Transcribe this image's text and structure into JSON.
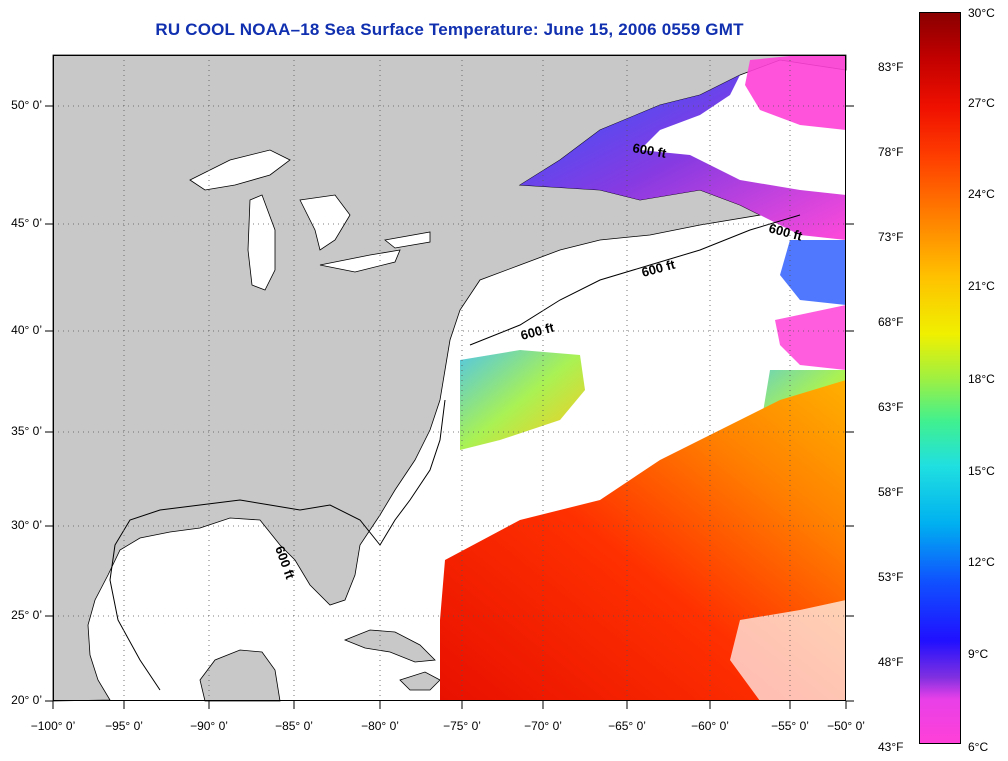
{
  "title": "RU COOL  NOAA–18  Sea Surface Temperature:  June 15, 2006 0559 GMT",
  "lat_labels": [
    "50° 0’",
    "45° 0’",
    "40° 0’",
    "35° 0’",
    "30° 0’",
    "25° 0’",
    "20° 0’"
  ],
  "lon_labels": [
    "−100° 0’",
    "−95° 0’",
    "−90° 0’",
    "−85° 0’",
    "−80° 0’",
    "−75° 0’",
    "−70° 0’",
    "−65° 0’",
    "−60° 0’",
    "−55° 0’",
    "−50° 0’"
  ],
  "colorbar_f": [
    "83°F",
    "78°F",
    "73°F",
    "68°F",
    "63°F",
    "58°F",
    "53°F",
    "48°F",
    "43°F"
  ],
  "colorbar_c": [
    "30°C",
    "27°C",
    "24°C",
    "21°C",
    "18°C",
    "15°C",
    "12°C",
    "9°C",
    "6°C"
  ],
  "contour_label": "600 ft",
  "colors": {
    "land": "#c8c8c8",
    "ocean_no_data": "#ffffff",
    "title": "#1030b0"
  }
}
